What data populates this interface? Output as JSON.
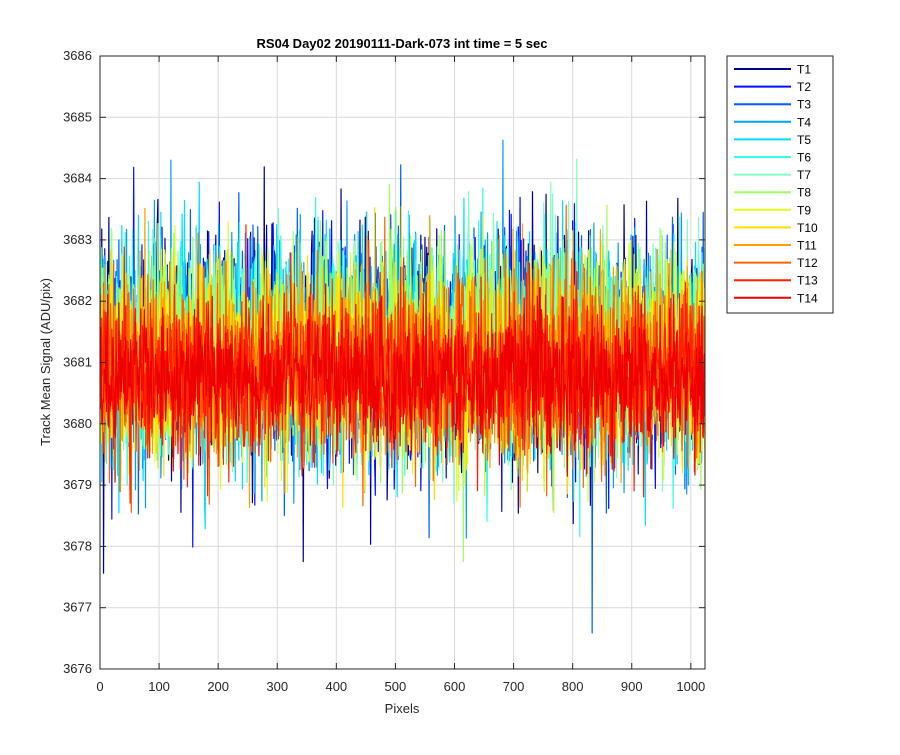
{
  "chart_data": {
    "type": "line",
    "title": "RS04 Day02 20190111-Dark-073 int time = 5 sec",
    "xlabel": "Pixels",
    "ylabel": "Track Mean Signal (ADU/pix)",
    "xlim": [
      0,
      1024
    ],
    "ylim": [
      3676,
      3686
    ],
    "xticks": [
      0,
      100,
      200,
      300,
      400,
      500,
      600,
      700,
      800,
      900,
      1000
    ],
    "yticks": [
      3676,
      3677,
      3678,
      3679,
      3680,
      3681,
      3682,
      3683,
      3684,
      3685,
      3686
    ],
    "grid": true,
    "legend_position": "outside-top-right",
    "n_points": 1024,
    "series": [
      {
        "name": "T1",
        "color": "#00008F",
        "mean": 3681.2,
        "noise": 1.05
      },
      {
        "name": "T2",
        "color": "#0010FF",
        "mean": 3681.2,
        "noise": 1.05
      },
      {
        "name": "T3",
        "color": "#005FFF",
        "mean": 3681.2,
        "noise": 1.0
      },
      {
        "name": "T4",
        "color": "#00A0FF",
        "mean": 3681.2,
        "noise": 1.0
      },
      {
        "name": "T5",
        "color": "#00DFFF",
        "mean": 3681.2,
        "noise": 1.0
      },
      {
        "name": "T6",
        "color": "#30FFEF",
        "mean": 3681.2,
        "noise": 0.95
      },
      {
        "name": "T7",
        "color": "#7FFFC0",
        "mean": 3681.2,
        "noise": 0.95
      },
      {
        "name": "T8",
        "color": "#A0FF60",
        "mean": 3681.2,
        "noise": 0.95
      },
      {
        "name": "T9",
        "color": "#DFFF20",
        "mean": 3681.0,
        "noise": 0.9
      },
      {
        "name": "T10",
        "color": "#FFDF00",
        "mean": 3681.0,
        "noise": 0.9
      },
      {
        "name": "T11",
        "color": "#FFA000",
        "mean": 3681.0,
        "noise": 0.85
      },
      {
        "name": "T12",
        "color": "#FF6000",
        "mean": 3680.9,
        "noise": 0.85
      },
      {
        "name": "T13",
        "color": "#FF2000",
        "mean": 3680.8,
        "noise": 0.75
      },
      {
        "name": "T14",
        "color": "#EF0000",
        "mean": 3680.8,
        "noise": 0.6
      }
    ]
  }
}
